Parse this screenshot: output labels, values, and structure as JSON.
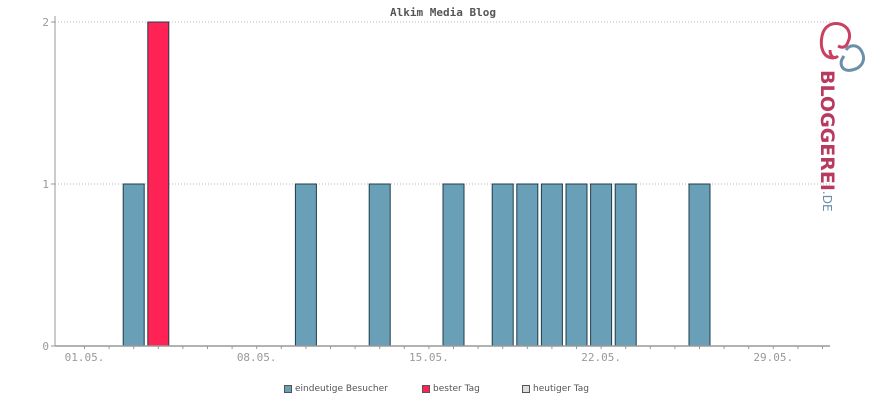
{
  "chart_data": {
    "type": "bar",
    "title": "Alkim Media Blog",
    "x_tick_labels": [
      "01.05.",
      "08.05.",
      "15.05.",
      "22.05.",
      "29.05."
    ],
    "y_tick_labels": [
      "0",
      "1",
      "2"
    ],
    "ylim": [
      0,
      2
    ],
    "days": 31,
    "series": [
      {
        "name": "eindeutige Besucher",
        "color": "#6a9fb8",
        "values": [
          0,
          0,
          1,
          2,
          0,
          0,
          0,
          0,
          0,
          1,
          0,
          0,
          1,
          0,
          0,
          1,
          0,
          1,
          1,
          1,
          1,
          1,
          1,
          0,
          0,
          1,
          0,
          0,
          0,
          0,
          0
        ]
      }
    ],
    "highlight": {
      "name": "bester Tag",
      "color": "#ff2255",
      "day_index": 3
    },
    "today": {
      "name": "heutiger Tag",
      "color": "#dddddd"
    },
    "grid": true
  },
  "legend": {
    "items": [
      {
        "label": "eindeutige Besucher",
        "color": "#6a9fb8"
      },
      {
        "label": "bester Tag",
        "color": "#ff2255"
      },
      {
        "label": "heutiger Tag",
        "color": "#dddddd"
      }
    ]
  },
  "logo": {
    "main": "BLOGGEREI",
    "suffix": ".DE"
  }
}
